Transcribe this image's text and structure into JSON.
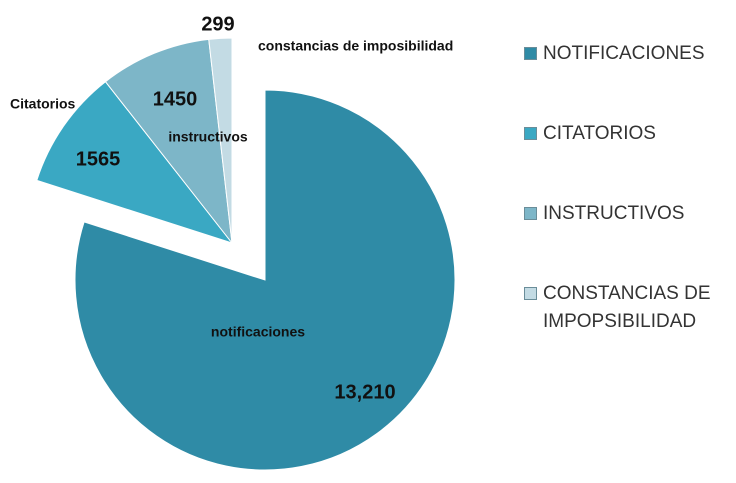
{
  "chart_data": {
    "type": "pie",
    "categories": [
      "NOTIFICACIONES",
      "CITATORIOS",
      "INSTRUCTIVOS",
      "CONSTANCIAS DE IMPOPSIBILIDAD"
    ],
    "category_labels": [
      "notificaciones",
      "Citatorios",
      "instructivos",
      "constancias de imposibilidad"
    ],
    "values": [
      13210,
      1565,
      1450,
      299
    ],
    "value_labels": [
      "13,210",
      "1565",
      "1450",
      "299"
    ],
    "colors": [
      "#2f8ba6",
      "#3aa8c3",
      "#7db6c8",
      "#c3dbe4"
    ],
    "legend": "right"
  }
}
